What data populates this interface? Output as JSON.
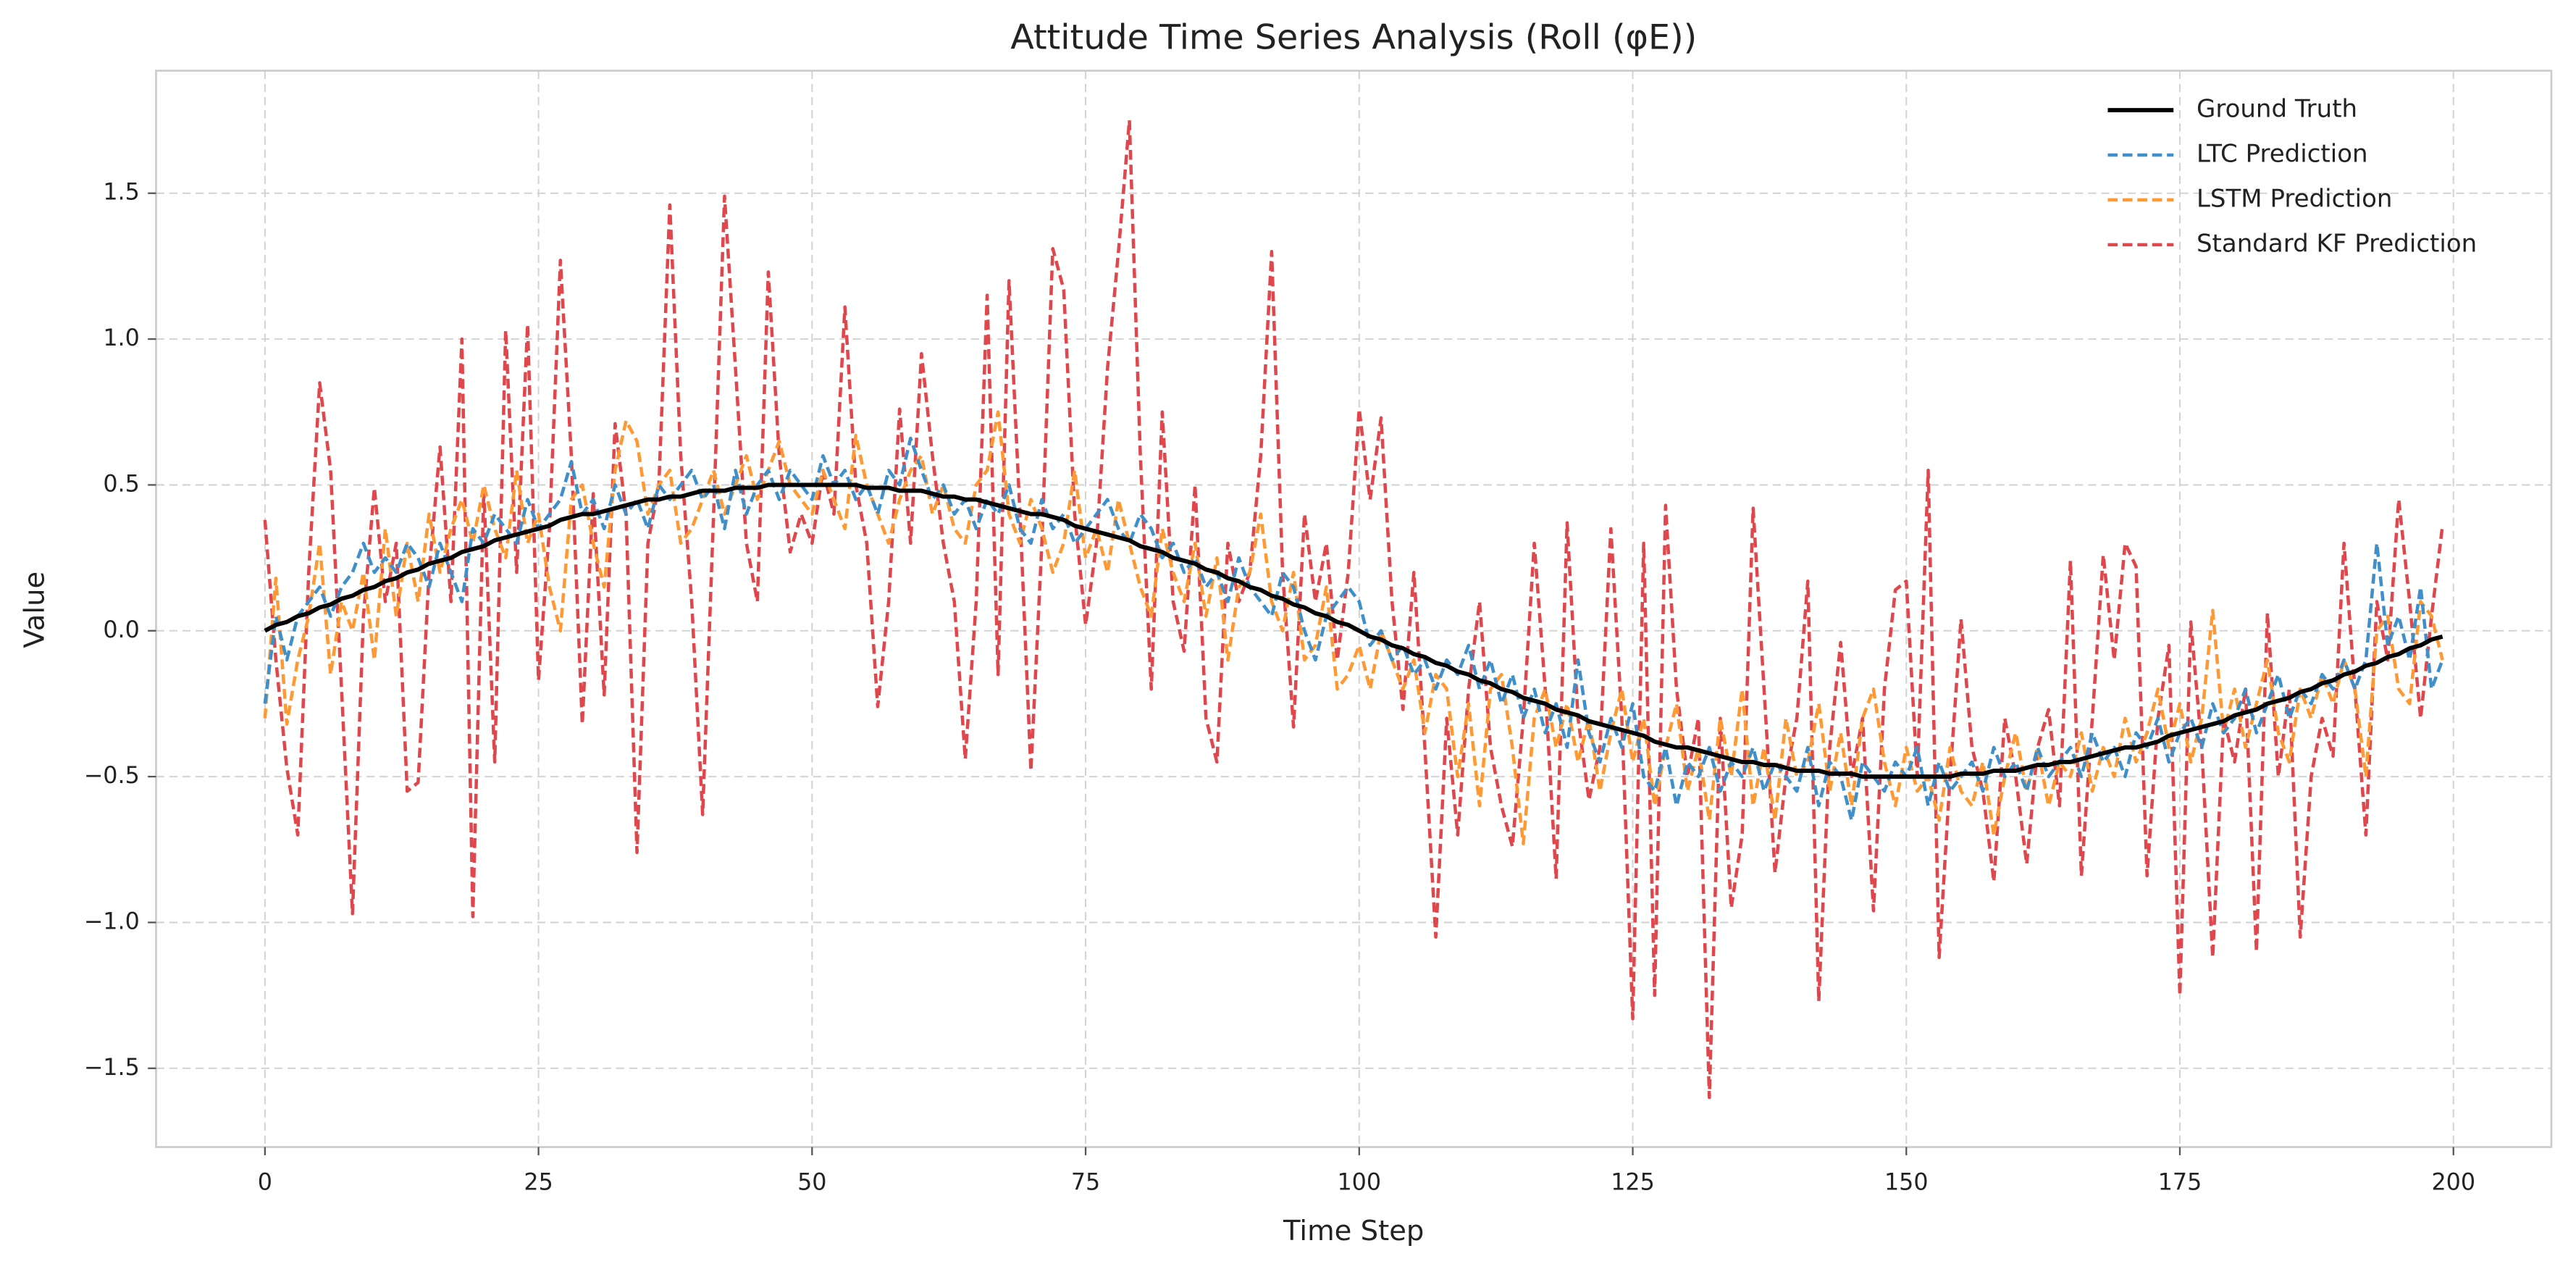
{
  "chart_data": {
    "type": "line",
    "title": "Attitude Time Series Analysis (Roll (φE))",
    "x_label": "Time Step",
    "y_label": "Value",
    "xlim": [
      -9.95,
      208.95
    ],
    "ylim": [
      -1.77,
      1.92
    ],
    "xticks": [
      0,
      25,
      50,
      75,
      100,
      125,
      150,
      175,
      200
    ],
    "yticks": [
      {
        "value": -1.5,
        "label": "−1.5"
      },
      {
        "value": -1.0,
        "label": "−1.0"
      },
      {
        "value": -0.5,
        "label": "−0.5"
      },
      {
        "value": 0,
        "label": "0.0"
      },
      {
        "value": 0.5,
        "label": "0.5"
      },
      {
        "value": 1.0,
        "label": "1.0"
      },
      {
        "value": 1.5,
        "label": "1.5"
      }
    ],
    "grid": true,
    "legend": "upper right",
    "x": [
      0,
      1,
      2,
      3,
      4,
      5,
      6,
      7,
      8,
      9,
      10,
      11,
      12,
      13,
      14,
      15,
      16,
      17,
      18,
      19,
      20,
      21,
      22,
      23,
      24,
      25,
      26,
      27,
      28,
      29,
      30,
      31,
      32,
      33,
      34,
      35,
      36,
      37,
      38,
      39,
      40,
      41,
      42,
      43,
      44,
      45,
      46,
      47,
      48,
      49,
      50,
      51,
      52,
      53,
      54,
      55,
      56,
      57,
      58,
      59,
      60,
      61,
      62,
      63,
      64,
      65,
      66,
      67,
      68,
      69,
      70,
      71,
      72,
      73,
      74,
      75,
      76,
      77,
      78,
      79,
      80,
      81,
      82,
      83,
      84,
      85,
      86,
      87,
      88,
      89,
      90,
      91,
      92,
      93,
      94,
      95,
      96,
      97,
      98,
      99,
      100,
      101,
      102,
      103,
      104,
      105,
      106,
      107,
      108,
      109,
      110,
      111,
      112,
      113,
      114,
      115,
      116,
      117,
      118,
      119,
      120,
      121,
      122,
      123,
      124,
      125,
      126,
      127,
      128,
      129,
      130,
      131,
      132,
      133,
      134,
      135,
      136,
      137,
      138,
      139,
      140,
      141,
      142,
      143,
      144,
      145,
      146,
      147,
      148,
      149,
      150,
      151,
      152,
      153,
      154,
      155,
      156,
      157,
      158,
      159,
      160,
      161,
      162,
      163,
      164,
      165,
      166,
      167,
      168,
      169,
      170,
      171,
      172,
      173,
      174,
      175,
      176,
      177,
      178,
      179,
      180,
      181,
      182,
      183,
      184,
      185,
      186,
      187,
      188,
      189,
      190,
      191,
      192,
      193,
      194,
      195,
      196,
      197,
      198,
      199
    ],
    "series": [
      {
        "name": "Ground Truth",
        "color": "#000000",
        "linestyle": "solid",
        "values": [
          0,
          0.02,
          0.03,
          0.05,
          0.06,
          0.08,
          0.09,
          0.11,
          0.12,
          0.14,
          0.15,
          0.17,
          0.18,
          0.2,
          0.21,
          0.23,
          0.24,
          0.25,
          0.27,
          0.28,
          0.29,
          0.31,
          0.32,
          0.33,
          0.34,
          0.35,
          0.36,
          0.38,
          0.39,
          0.4,
          0.4,
          0.41,
          0.42,
          0.43,
          0.44,
          0.45,
          0.45,
          0.46,
          0.46,
          0.47,
          0.48,
          0.48,
          0.48,
          0.49,
          0.49,
          0.49,
          0.5,
          0.5,
          0.5,
          0.5,
          0.5,
          0.5,
          0.5,
          0.5,
          0.5,
          0.49,
          0.49,
          0.49,
          0.48,
          0.48,
          0.48,
          0.47,
          0.46,
          0.46,
          0.45,
          0.45,
          0.44,
          0.43,
          0.42,
          0.41,
          0.4,
          0.4,
          0.39,
          0.38,
          0.36,
          0.35,
          0.34,
          0.33,
          0.32,
          0.31,
          0.29,
          0.28,
          0.27,
          0.25,
          0.24,
          0.23,
          0.21,
          0.2,
          0.18,
          0.17,
          0.15,
          0.14,
          0.12,
          0.11,
          0.09,
          0.08,
          0.06,
          0.05,
          0.03,
          0.02,
          0,
          -0.02,
          -0.03,
          -0.05,
          -0.06,
          -0.08,
          -0.09,
          -0.11,
          -0.12,
          -0.14,
          -0.15,
          -0.17,
          -0.18,
          -0.2,
          -0.21,
          -0.23,
          -0.24,
          -0.25,
          -0.27,
          -0.28,
          -0.29,
          -0.31,
          -0.32,
          -0.33,
          -0.34,
          -0.35,
          -0.36,
          -0.38,
          -0.39,
          -0.4,
          -0.4,
          -0.41,
          -0.42,
          -0.43,
          -0.44,
          -0.45,
          -0.45,
          -0.46,
          -0.46,
          -0.47,
          -0.48,
          -0.48,
          -0.48,
          -0.49,
          -0.49,
          -0.49,
          -0.5,
          -0.5,
          -0.5,
          -0.5,
          -0.5,
          -0.5,
          -0.5,
          -0.5,
          -0.5,
          -0.49,
          -0.49,
          -0.49,
          -0.48,
          -0.48,
          -0.48,
          -0.47,
          -0.46,
          -0.46,
          -0.45,
          -0.45,
          -0.44,
          -0.43,
          -0.42,
          -0.41,
          -0.4,
          -0.4,
          -0.39,
          -0.38,
          -0.36,
          -0.35,
          -0.34,
          -0.33,
          -0.32,
          -0.31,
          -0.29,
          -0.28,
          -0.27,
          -0.25,
          -0.24,
          -0.23,
          -0.21,
          -0.2,
          -0.18,
          -0.17,
          -0.15,
          -0.14,
          -0.12,
          -0.11,
          -0.09,
          -0.08,
          -0.06,
          -0.05,
          -0.03,
          -0.02
        ]
      },
      {
        "name": "LTC Prediction",
        "color": "#3f8fca",
        "linestyle": "dashed",
        "values": [
          -0.25,
          0.05,
          -0.1,
          0.05,
          0.1,
          0.15,
          0.05,
          0.15,
          0.2,
          0.3,
          0.2,
          0.25,
          0.2,
          0.3,
          0.25,
          0.15,
          0.3,
          0.2,
          0.1,
          0.35,
          0.3,
          0.4,
          0.35,
          0.3,
          0.45,
          0.35,
          0.4,
          0.45,
          0.58,
          0.4,
          0.45,
          0.35,
          0.5,
          0.4,
          0.45,
          0.35,
          0.5,
          0.45,
          0.5,
          0.55,
          0.45,
          0.5,
          0.35,
          0.55,
          0.4,
          0.5,
          0.55,
          0.45,
          0.55,
          0.5,
          0.45,
          0.6,
          0.5,
          0.55,
          0.45,
          0.5,
          0.4,
          0.55,
          0.5,
          0.66,
          0.55,
          0.45,
          0.5,
          0.4,
          0.45,
          0.35,
          0.45,
          0.4,
          0.5,
          0.35,
          0.3,
          0.45,
          0.35,
          0.4,
          0.3,
          0.35,
          0.4,
          0.45,
          0.35,
          0.3,
          0.4,
          0.35,
          0.25,
          0.3,
          0.2,
          0.25,
          0.15,
          0.2,
          0.1,
          0.25,
          0.15,
          0.1,
          0.05,
          0.2,
          0.15,
          0.0,
          -0.1,
          0.05,
          0.1,
          0.15,
          0.1,
          -0.05,
          0.0,
          -0.1,
          -0.05,
          -0.15,
          -0.1,
          -0.2,
          -0.1,
          -0.15,
          -0.05,
          -0.2,
          -0.1,
          -0.25,
          -0.15,
          -0.3,
          -0.2,
          -0.35,
          -0.25,
          -0.4,
          -0.1,
          -0.35,
          -0.45,
          -0.3,
          -0.4,
          -0.25,
          -0.5,
          -0.55,
          -0.4,
          -0.6,
          -0.45,
          -0.5,
          -0.4,
          -0.55,
          -0.45,
          -0.5,
          -0.4,
          -0.55,
          -0.45,
          -0.5,
          -0.55,
          -0.4,
          -0.6,
          -0.45,
          -0.5,
          -0.65,
          -0.45,
          -0.5,
          -0.55,
          -0.45,
          -0.5,
          -0.4,
          -0.6,
          -0.45,
          -0.55,
          -0.5,
          -0.45,
          -0.55,
          -0.4,
          -0.5,
          -0.45,
          -0.55,
          -0.4,
          -0.5,
          -0.45,
          -0.4,
          -0.5,
          -0.35,
          -0.45,
          -0.4,
          -0.5,
          -0.35,
          -0.4,
          -0.3,
          -0.45,
          -0.35,
          -0.3,
          -0.4,
          -0.25,
          -0.35,
          -0.3,
          -0.2,
          -0.35,
          -0.25,
          -0.15,
          -0.3,
          -0.2,
          -0.25,
          -0.15,
          -0.2,
          -0.1,
          -0.2,
          -0.1,
          0.3,
          -0.05,
          0.05,
          -0.1,
          0.15,
          -0.2,
          -0.1
        ]
      },
      {
        "name": "LSTM Prediction",
        "color": "#ff9933",
        "linestyle": "dashed",
        "values": [
          -0.3,
          0.18,
          -0.32,
          -0.1,
          0.05,
          0.3,
          -0.15,
          0.1,
          0.0,
          0.2,
          -0.1,
          0.35,
          0.05,
          0.3,
          0.1,
          0.4,
          0.2,
          0.35,
          0.45,
          0.3,
          0.5,
          0.35,
          0.25,
          0.55,
          0.3,
          0.4,
          0.15,
          0.0,
          0.45,
          0.5,
          0.3,
          0.15,
          0.55,
          0.72,
          0.65,
          0.4,
          0.5,
          0.55,
          0.3,
          0.35,
          0.45,
          0.55,
          0.4,
          0.5,
          0.6,
          0.45,
          0.55,
          0.65,
          0.5,
          0.45,
          0.4,
          0.55,
          0.45,
          0.35,
          0.67,
          0.5,
          0.4,
          0.3,
          0.45,
          0.55,
          0.6,
          0.4,
          0.5,
          0.35,
          0.3,
          0.5,
          0.55,
          0.75,
          0.4,
          0.3,
          0.45,
          0.35,
          0.2,
          0.3,
          0.55,
          0.25,
          0.35,
          0.2,
          0.45,
          0.3,
          0.15,
          0.05,
          0.35,
          0.2,
          0.1,
          0.3,
          0.05,
          0.25,
          -0.1,
          0.15,
          0.2,
          0.4,
          0.1,
          0.0,
          0.2,
          -0.1,
          -0.05,
          0.15,
          -0.2,
          -0.15,
          -0.05,
          -0.2,
          0.0,
          -0.1,
          -0.2,
          -0.1,
          -0.35,
          -0.15,
          -0.2,
          -0.5,
          -0.25,
          -0.6,
          -0.2,
          -0.15,
          -0.4,
          -0.73,
          -0.3,
          -0.2,
          -0.4,
          -0.25,
          -0.45,
          -0.3,
          -0.55,
          -0.35,
          -0.2,
          -0.45,
          -0.3,
          -0.6,
          -0.4,
          -0.25,
          -0.55,
          -0.4,
          -0.65,
          -0.3,
          -0.5,
          -0.2,
          -0.6,
          -0.4,
          -0.65,
          -0.3,
          -0.5,
          -0.45,
          -0.25,
          -0.55,
          -0.35,
          -0.6,
          -0.3,
          -0.2,
          -0.45,
          -0.6,
          -0.4,
          -0.55,
          -0.5,
          -0.65,
          -0.4,
          -0.55,
          -0.6,
          -0.45,
          -0.7,
          -0.5,
          -0.35,
          -0.55,
          -0.4,
          -0.6,
          -0.45,
          -0.5,
          -0.35,
          -0.55,
          -0.4,
          -0.5,
          -0.3,
          -0.45,
          -0.35,
          -0.2,
          -0.4,
          -0.25,
          -0.45,
          -0.3,
          0.07,
          -0.35,
          -0.2,
          -0.4,
          -0.25,
          -0.1,
          -0.35,
          -0.45,
          -0.2,
          -0.3,
          -0.15,
          -0.25,
          -0.1,
          -0.2,
          -0.5,
          0.0,
          0.05,
          -0.2,
          -0.25,
          0.1,
          0.05,
          -0.1
        ]
      },
      {
        "name": "Standard KF Prediction",
        "color": "#e0474c",
        "linestyle": "dashed",
        "values": [
          0.38,
          -0.1,
          -0.47,
          -0.7,
          0.2,
          0.85,
          0.55,
          -0.2,
          -0.97,
          0.05,
          0.49,
          0.1,
          0.3,
          -0.55,
          -0.52,
          0.2,
          0.63,
          0.1,
          1.0,
          -0.98,
          0.48,
          -0.45,
          1.03,
          0.2,
          1.05,
          -0.17,
          0.35,
          1.27,
          0.6,
          -0.32,
          0.47,
          -0.22,
          0.71,
          0.4,
          -0.76,
          0.3,
          0.5,
          1.46,
          0.6,
          0.1,
          -0.63,
          0.4,
          1.49,
          0.9,
          0.3,
          0.1,
          1.23,
          0.6,
          0.27,
          0.4,
          0.3,
          0.55,
          0.4,
          1.11,
          0.5,
          0.3,
          -0.26,
          0.1,
          0.76,
          0.3,
          0.95,
          0.6,
          0.3,
          0.1,
          -0.44,
          0.1,
          1.15,
          -0.15,
          1.2,
          0.4,
          -0.48,
          0.3,
          1.31,
          1.17,
          0.4,
          0.02,
          0.3,
          0.9,
          1.3,
          1.75,
          0.6,
          -0.2,
          0.75,
          0.1,
          -0.07,
          0.5,
          -0.3,
          -0.45,
          0.3,
          0.1,
          0.2,
          0.6,
          1.3,
          0.2,
          -0.33,
          0.4,
          0.1,
          0.3,
          -0.1,
          0.2,
          0.76,
          0.45,
          0.73,
          0.1,
          -0.27,
          0.2,
          -0.4,
          -1.05,
          -0.3,
          -0.7,
          -0.2,
          0.1,
          -0.4,
          -0.6,
          -0.74,
          -0.3,
          0.3,
          -0.2,
          -0.85,
          0.37,
          -0.3,
          -0.58,
          -0.4,
          0.35,
          -0.3,
          -1.33,
          0.3,
          -1.25,
          0.43,
          -0.2,
          -0.5,
          -0.3,
          -1.6,
          -0.3,
          -0.95,
          -0.7,
          0.42,
          -0.2,
          -0.83,
          -0.5,
          -0.3,
          0.17,
          -1.27,
          -0.4,
          -0.04,
          -0.5,
          -0.3,
          -0.96,
          -0.2,
          0.14,
          0.17,
          -0.5,
          0.55,
          -1.12,
          -0.5,
          0.04,
          -0.4,
          -0.55,
          -0.86,
          -0.3,
          -0.5,
          -0.8,
          -0.4,
          -0.27,
          -0.6,
          0.24,
          -0.84,
          -0.3,
          0.26,
          -0.1,
          0.3,
          0.22,
          -0.84,
          -0.3,
          -0.05,
          -1.25,
          0.03,
          -0.4,
          -1.12,
          -0.3,
          -0.45,
          -0.2,
          -1.1,
          0.06,
          -0.5,
          -0.2,
          -1.05,
          -0.5,
          -0.3,
          -0.43,
          0.3,
          -0.2,
          -0.7,
          0.1,
          -0.1,
          0.45,
          0.1,
          -0.3,
          0.05,
          0.36
        ]
      }
    ]
  }
}
